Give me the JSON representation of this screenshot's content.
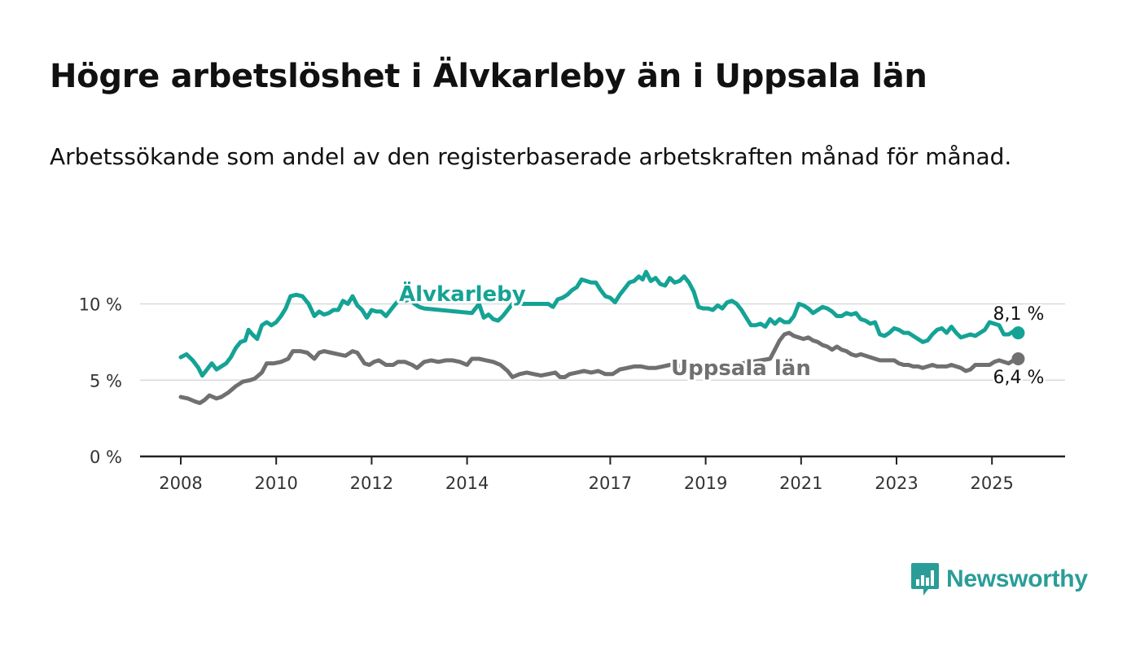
{
  "title": "Högre arbetslöshet i Älvkarleby än i Uppsala län",
  "subtitle": "Arbetssökande som andel av den registerbaserade arbetskraften månad för månad.",
  "logo_text": "Newsworthy",
  "colors": {
    "alvkarleby": "#14a395",
    "uppsala": "#707070",
    "grid": "#d9d9d9",
    "axis": "#222222",
    "logo": "#2a9d98"
  },
  "chart_data": {
    "type": "line",
    "ylim": [
      0,
      12.5
    ],
    "xlim": [
      2007.25,
      2026.4
    ],
    "y_ticks": [
      0,
      5,
      10
    ],
    "y_tick_labels": [
      "0 %",
      "5 %",
      "10 %"
    ],
    "x_ticks": [
      2008,
      2010,
      2012,
      2014,
      2017,
      2019,
      2021,
      2023,
      2025
    ],
    "x_tick_labels": [
      "2008",
      "2010",
      "2012",
      "2014",
      "2017",
      "2019",
      "2021",
      "2023",
      "2025"
    ],
    "grid": "horizontal",
    "series": [
      {
        "name": "Älvkarleby",
        "color": "#14a395",
        "end_label": "8,1 %",
        "points": [
          [
            2008.0,
            6.5
          ],
          [
            2008.12,
            6.7
          ],
          [
            2008.25,
            6.3
          ],
          [
            2008.37,
            5.8
          ],
          [
            2008.45,
            5.3
          ],
          [
            2008.55,
            5.7
          ],
          [
            2008.65,
            6.1
          ],
          [
            2008.75,
            5.7
          ],
          [
            2008.85,
            5.9
          ],
          [
            2008.95,
            6.1
          ],
          [
            2009.05,
            6.5
          ],
          [
            2009.15,
            7.1
          ],
          [
            2009.25,
            7.5
          ],
          [
            2009.35,
            7.6
          ],
          [
            2009.42,
            8.3
          ],
          [
            2009.5,
            8.0
          ],
          [
            2009.6,
            7.7
          ],
          [
            2009.7,
            8.6
          ],
          [
            2009.8,
            8.8
          ],
          [
            2009.9,
            8.6
          ],
          [
            2010.0,
            8.8
          ],
          [
            2010.1,
            9.2
          ],
          [
            2010.2,
            9.7
          ],
          [
            2010.3,
            10.5
          ],
          [
            2010.42,
            10.6
          ],
          [
            2010.55,
            10.5
          ],
          [
            2010.68,
            10.0
          ],
          [
            2010.8,
            9.2
          ],
          [
            2010.9,
            9.5
          ],
          [
            2011.0,
            9.3
          ],
          [
            2011.1,
            9.4
          ],
          [
            2011.2,
            9.6
          ],
          [
            2011.3,
            9.6
          ],
          [
            2011.4,
            10.2
          ],
          [
            2011.5,
            10.0
          ],
          [
            2011.6,
            10.5
          ],
          [
            2011.7,
            9.9
          ],
          [
            2011.8,
            9.6
          ],
          [
            2011.9,
            9.1
          ],
          [
            2012.0,
            9.6
          ],
          [
            2012.1,
            9.5
          ],
          [
            2012.2,
            9.5
          ],
          [
            2012.3,
            9.2
          ],
          [
            2012.4,
            9.6
          ],
          [
            2012.5,
            10.0
          ],
          [
            2012.6,
            10.3
          ],
          [
            2012.7,
            10.2
          ],
          [
            2012.8,
            10.3
          ],
          [
            2012.9,
            10.0
          ],
          [
            2013.0,
            9.8
          ],
          [
            2013.1,
            9.7
          ],
          [
            2014.1,
            9.4
          ],
          [
            2014.25,
            10.0
          ],
          [
            2014.35,
            9.1
          ],
          [
            2014.45,
            9.3
          ],
          [
            2014.55,
            9.0
          ],
          [
            2014.65,
            8.9
          ],
          [
            2014.75,
            9.2
          ],
          [
            2014.85,
            9.6
          ],
          [
            2014.95,
            10.0
          ],
          [
            2015.7,
            10.0
          ],
          [
            2015.8,
            9.8
          ],
          [
            2015.9,
            10.3
          ],
          [
            2016.0,
            10.4
          ],
          [
            2016.1,
            10.6
          ],
          [
            2016.2,
            10.9
          ],
          [
            2016.3,
            11.1
          ],
          [
            2016.4,
            11.6
          ],
          [
            2016.5,
            11.5
          ],
          [
            2016.6,
            11.4
          ],
          [
            2016.7,
            11.4
          ],
          [
            2016.8,
            10.9
          ],
          [
            2016.9,
            10.5
          ],
          [
            2017.0,
            10.4
          ],
          [
            2017.1,
            10.1
          ],
          [
            2017.2,
            10.6
          ],
          [
            2017.3,
            11.0
          ],
          [
            2017.4,
            11.4
          ],
          [
            2017.5,
            11.5
          ],
          [
            2017.6,
            11.8
          ],
          [
            2017.68,
            11.6
          ],
          [
            2017.75,
            12.1
          ],
          [
            2017.85,
            11.5
          ],
          [
            2017.95,
            11.7
          ],
          [
            2018.05,
            11.3
          ],
          [
            2018.15,
            11.2
          ],
          [
            2018.25,
            11.7
          ],
          [
            2018.35,
            11.4
          ],
          [
            2018.45,
            11.5
          ],
          [
            2018.55,
            11.8
          ],
          [
            2018.65,
            11.4
          ],
          [
            2018.75,
            10.8
          ],
          [
            2018.85,
            9.8
          ],
          [
            2018.95,
            9.7
          ],
          [
            2019.05,
            9.7
          ],
          [
            2019.15,
            9.6
          ],
          [
            2019.25,
            9.9
          ],
          [
            2019.35,
            9.7
          ],
          [
            2019.45,
            10.1
          ],
          [
            2019.55,
            10.2
          ],
          [
            2019.65,
            10.0
          ],
          [
            2019.75,
            9.6
          ],
          [
            2019.85,
            9.1
          ],
          [
            2019.95,
            8.6
          ],
          [
            2020.05,
            8.6
          ],
          [
            2020.15,
            8.7
          ],
          [
            2020.25,
            8.5
          ],
          [
            2020.35,
            9.0
          ],
          [
            2020.45,
            8.7
          ],
          [
            2020.55,
            9.0
          ],
          [
            2020.65,
            8.8
          ],
          [
            2020.75,
            8.8
          ],
          [
            2020.85,
            9.2
          ],
          [
            2020.95,
            10.0
          ],
          [
            2021.05,
            9.9
          ],
          [
            2021.15,
            9.7
          ],
          [
            2021.25,
            9.4
          ],
          [
            2021.35,
            9.6
          ],
          [
            2021.45,
            9.8
          ],
          [
            2021.55,
            9.7
          ],
          [
            2021.65,
            9.5
          ],
          [
            2021.75,
            9.2
          ],
          [
            2021.85,
            9.2
          ],
          [
            2021.95,
            9.4
          ],
          [
            2022.05,
            9.3
          ],
          [
            2022.15,
            9.4
          ],
          [
            2022.25,
            9.0
          ],
          [
            2022.35,
            8.9
          ],
          [
            2022.45,
            8.7
          ],
          [
            2022.55,
            8.8
          ],
          [
            2022.65,
            8.0
          ],
          [
            2022.75,
            7.9
          ],
          [
            2022.85,
            8.1
          ],
          [
            2022.95,
            8.4
          ],
          [
            2023.05,
            8.3
          ],
          [
            2023.15,
            8.1
          ],
          [
            2023.25,
            8.1
          ],
          [
            2023.35,
            7.9
          ],
          [
            2023.45,
            7.7
          ],
          [
            2023.55,
            7.5
          ],
          [
            2023.65,
            7.6
          ],
          [
            2023.75,
            8.0
          ],
          [
            2023.85,
            8.3
          ],
          [
            2023.95,
            8.4
          ],
          [
            2024.05,
            8.1
          ],
          [
            2024.15,
            8.5
          ],
          [
            2024.25,
            8.1
          ],
          [
            2024.35,
            7.8
          ],
          [
            2024.45,
            7.9
          ],
          [
            2024.55,
            8.0
          ],
          [
            2024.65,
            7.9
          ],
          [
            2024.75,
            8.1
          ],
          [
            2024.85,
            8.3
          ],
          [
            2024.95,
            8.8
          ],
          [
            2025.05,
            8.7
          ],
          [
            2025.15,
            8.6
          ],
          [
            2025.25,
            8.0
          ],
          [
            2025.35,
            8.0
          ],
          [
            2025.45,
            8.2
          ],
          [
            2025.55,
            8.1
          ]
        ]
      },
      {
        "name": "Uppsala län",
        "color": "#707070",
        "end_label": "6,4 %",
        "points": [
          [
            2008.0,
            3.9
          ],
          [
            2008.15,
            3.8
          ],
          [
            2008.3,
            3.6
          ],
          [
            2008.4,
            3.5
          ],
          [
            2008.5,
            3.7
          ],
          [
            2008.6,
            4.0
          ],
          [
            2008.75,
            3.8
          ],
          [
            2008.85,
            3.9
          ],
          [
            2009.0,
            4.2
          ],
          [
            2009.15,
            4.6
          ],
          [
            2009.3,
            4.9
          ],
          [
            2009.45,
            5.0
          ],
          [
            2009.55,
            5.1
          ],
          [
            2009.7,
            5.5
          ],
          [
            2009.8,
            6.1
          ],
          [
            2009.95,
            6.1
          ],
          [
            2010.1,
            6.2
          ],
          [
            2010.25,
            6.4
          ],
          [
            2010.35,
            6.9
          ],
          [
            2010.5,
            6.9
          ],
          [
            2010.65,
            6.8
          ],
          [
            2010.8,
            6.4
          ],
          [
            2010.9,
            6.8
          ],
          [
            2011.0,
            6.9
          ],
          [
            2011.15,
            6.8
          ],
          [
            2011.3,
            6.7
          ],
          [
            2011.45,
            6.6
          ],
          [
            2011.6,
            6.9
          ],
          [
            2011.7,
            6.8
          ],
          [
            2011.85,
            6.1
          ],
          [
            2011.95,
            6.0
          ],
          [
            2012.05,
            6.2
          ],
          [
            2012.15,
            6.3
          ],
          [
            2012.3,
            6.0
          ],
          [
            2012.45,
            6.0
          ],
          [
            2012.55,
            6.2
          ],
          [
            2012.7,
            6.2
          ],
          [
            2012.85,
            6.0
          ],
          [
            2012.95,
            5.8
          ],
          [
            2013.1,
            6.2
          ],
          [
            2013.25,
            6.3
          ],
          [
            2013.4,
            6.2
          ],
          [
            2013.55,
            6.3
          ],
          [
            2013.7,
            6.3
          ],
          [
            2013.85,
            6.2
          ],
          [
            2014.0,
            6.0
          ],
          [
            2014.1,
            6.4
          ],
          [
            2014.25,
            6.4
          ],
          [
            2014.4,
            6.3
          ],
          [
            2014.55,
            6.2
          ],
          [
            2014.7,
            6.0
          ],
          [
            2014.85,
            5.6
          ],
          [
            2014.95,
            5.2
          ],
          [
            2015.1,
            5.4
          ],
          [
            2015.25,
            5.5
          ],
          [
            2015.4,
            5.4
          ],
          [
            2015.55,
            5.3
          ],
          [
            2015.7,
            5.4
          ],
          [
            2015.85,
            5.5
          ],
          [
            2015.95,
            5.2
          ],
          [
            2016.05,
            5.2
          ],
          [
            2016.15,
            5.4
          ],
          [
            2016.3,
            5.5
          ],
          [
            2016.45,
            5.6
          ],
          [
            2016.6,
            5.5
          ],
          [
            2016.75,
            5.6
          ],
          [
            2016.9,
            5.4
          ],
          [
            2017.05,
            5.4
          ],
          [
            2017.2,
            5.7
          ],
          [
            2017.35,
            5.8
          ],
          [
            2017.5,
            5.9
          ],
          [
            2017.65,
            5.9
          ],
          [
            2017.8,
            5.8
          ],
          [
            2017.95,
            5.8
          ],
          [
            2018.1,
            5.9
          ],
          [
            2018.25,
            6.0
          ],
          [
            2018.4,
            5.9
          ],
          [
            2018.55,
            6.0
          ],
          [
            2018.7,
            5.8
          ],
          [
            2018.8,
            5.6
          ],
          [
            2020.35,
            6.4
          ],
          [
            2020.45,
            7.0
          ],
          [
            2020.55,
            7.6
          ],
          [
            2020.65,
            8.0
          ],
          [
            2020.75,
            8.1
          ],
          [
            2020.85,
            7.9
          ],
          [
            2020.95,
            7.8
          ],
          [
            2021.05,
            7.7
          ],
          [
            2021.15,
            7.8
          ],
          [
            2021.25,
            7.6
          ],
          [
            2021.35,
            7.5
          ],
          [
            2021.45,
            7.3
          ],
          [
            2021.55,
            7.2
          ],
          [
            2021.65,
            7.0
          ],
          [
            2021.75,
            7.2
          ],
          [
            2021.85,
            7.0
          ],
          [
            2021.95,
            6.9
          ],
          [
            2022.05,
            6.7
          ],
          [
            2022.15,
            6.6
          ],
          [
            2022.25,
            6.7
          ],
          [
            2022.35,
            6.6
          ],
          [
            2022.45,
            6.5
          ],
          [
            2022.55,
            6.4
          ],
          [
            2022.65,
            6.3
          ],
          [
            2022.75,
            6.3
          ],
          [
            2022.85,
            6.3
          ],
          [
            2022.95,
            6.3
          ],
          [
            2023.05,
            6.1
          ],
          [
            2023.15,
            6.0
          ],
          [
            2023.25,
            6.0
          ],
          [
            2023.35,
            5.9
          ],
          [
            2023.45,
            5.9
          ],
          [
            2023.55,
            5.8
          ],
          [
            2023.65,
            5.9
          ],
          [
            2023.75,
            6.0
          ],
          [
            2023.85,
            5.9
          ],
          [
            2023.95,
            5.9
          ],
          [
            2024.05,
            5.9
          ],
          [
            2024.15,
            6.0
          ],
          [
            2024.25,
            5.9
          ],
          [
            2024.35,
            5.8
          ],
          [
            2024.45,
            5.6
          ],
          [
            2024.55,
            5.7
          ],
          [
            2024.65,
            6.0
          ],
          [
            2024.75,
            6.0
          ],
          [
            2024.85,
            6.0
          ],
          [
            2024.95,
            6.0
          ],
          [
            2025.05,
            6.2
          ],
          [
            2025.15,
            6.3
          ],
          [
            2025.25,
            6.2
          ],
          [
            2025.35,
            6.1
          ],
          [
            2025.45,
            6.3
          ],
          [
            2025.55,
            6.4
          ]
        ]
      }
    ]
  }
}
